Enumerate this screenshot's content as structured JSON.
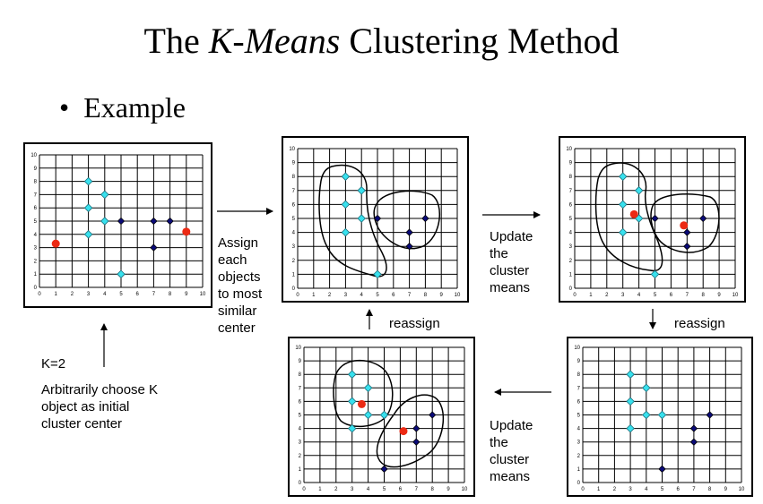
{
  "title": {
    "prefix": "The ",
    "italic": "K-Means",
    "suffix": " Clustering Method"
  },
  "bullet": "Example",
  "labels": {
    "assign": [
      "Assign",
      "each",
      "objects",
      "to most",
      "similar",
      "center"
    ],
    "update_top": [
      "Update",
      "the",
      "cluster",
      "means"
    ],
    "update_bottom": [
      "Update",
      "the",
      "cluster",
      "means"
    ],
    "reassign_left": "reassign",
    "reassign_right": "reassign",
    "k": "K=2",
    "choose": [
      "Arbitrarily choose K",
      "object as initial",
      "cluster center"
    ]
  },
  "colors": {
    "cyan": "#38e1ee",
    "navy": "#0a0a78",
    "red": "#ec2a14"
  },
  "axis": {
    "min": 0,
    "max": 10,
    "ticks": [
      0,
      1,
      2,
      3,
      4,
      5,
      6,
      7,
      8,
      9,
      10
    ]
  },
  "chart_data": [
    {
      "type": "scatter",
      "name": "initial",
      "series": [
        {
          "color": "cyan",
          "points": [
            [
              3,
              8
            ],
            [
              3,
              6
            ],
            [
              3,
              4
            ],
            [
              4,
              7
            ],
            [
              4,
              5
            ],
            [
              5,
              1
            ]
          ]
        },
        {
          "color": "navy",
          "points": [
            [
              5,
              5
            ],
            [
              7,
              5
            ],
            [
              8,
              5
            ],
            [
              7,
              3
            ]
          ]
        }
      ],
      "centers": [
        [
          1,
          3.3
        ],
        [
          9,
          4.2
        ]
      ],
      "xlim": [
        0,
        10
      ],
      "ylim": [
        0,
        10
      ]
    },
    {
      "type": "scatter",
      "name": "assigned",
      "series": [
        {
          "color": "cyan",
          "points": [
            [
              3,
              8
            ],
            [
              3,
              6
            ],
            [
              3,
              4
            ],
            [
              4,
              7
            ],
            [
              4,
              5
            ],
            [
              5,
              1
            ]
          ]
        },
        {
          "color": "navy",
          "points": [
            [
              5,
              5
            ],
            [
              7,
              4
            ],
            [
              7,
              3
            ],
            [
              8,
              5
            ]
          ]
        }
      ],
      "centers": [],
      "xlim": [
        0,
        10
      ],
      "ylim": [
        0,
        10
      ]
    },
    {
      "type": "scatter",
      "name": "means-1",
      "series": [
        {
          "color": "cyan",
          "points": [
            [
              3,
              8
            ],
            [
              3,
              6
            ],
            [
              3,
              4
            ],
            [
              4,
              7
            ],
            [
              4,
              5
            ],
            [
              5,
              1
            ]
          ]
        },
        {
          "color": "navy",
          "points": [
            [
              5,
              5
            ],
            [
              7,
              4
            ],
            [
              7,
              3
            ],
            [
              8,
              5
            ]
          ]
        }
      ],
      "centers": [
        [
          3.7,
          5.3
        ],
        [
          6.8,
          4.5
        ]
      ],
      "xlim": [
        0,
        10
      ],
      "ylim": [
        0,
        10
      ]
    },
    {
      "type": "scatter",
      "name": "reassigned",
      "series": [
        {
          "color": "cyan",
          "points": [
            [
              3,
              8
            ],
            [
              3,
              6
            ],
            [
              3,
              4
            ],
            [
              4,
              7
            ],
            [
              4,
              5
            ],
            [
              5,
              5
            ]
          ]
        },
        {
          "color": "navy",
          "points": [
            [
              7,
              4
            ],
            [
              7,
              3
            ],
            [
              8,
              5
            ],
            [
              5,
              1
            ]
          ]
        }
      ],
      "centers": [],
      "xlim": [
        0,
        10
      ],
      "ylim": [
        0,
        10
      ]
    },
    {
      "type": "scatter",
      "name": "means-2",
      "series": [
        {
          "color": "cyan",
          "points": [
            [
              3,
              8
            ],
            [
              3,
              6
            ],
            [
              3,
              4
            ],
            [
              4,
              7
            ],
            [
              4,
              5
            ],
            [
              5,
              5
            ]
          ]
        },
        {
          "color": "navy",
          "points": [
            [
              7,
              4
            ],
            [
              7,
              3
            ],
            [
              8,
              5
            ],
            [
              5,
              1
            ]
          ]
        }
      ],
      "centers": [
        [
          3.6,
          5.8
        ],
        [
          6.2,
          3.8
        ]
      ],
      "xlim": [
        0,
        10
      ],
      "ylim": [
        0,
        10
      ]
    }
  ]
}
